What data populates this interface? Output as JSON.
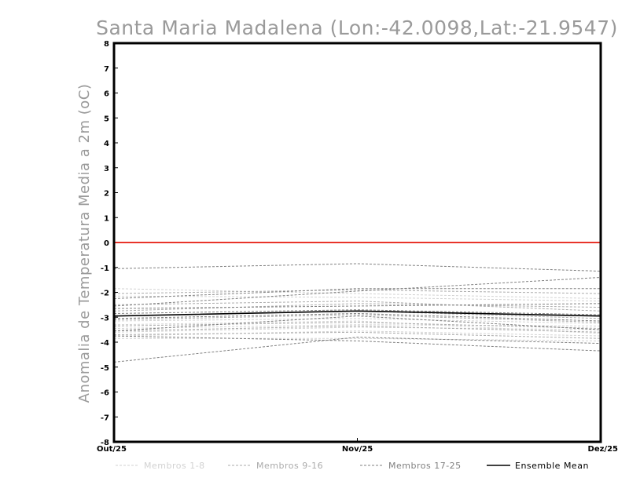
{
  "chart_data": {
    "type": "line",
    "title": "Santa Maria Madalena (Lon:-42.0098,Lat:-21.9547)",
    "xlabel": "",
    "ylabel": "Anomalia de Temperatura Media a 2m (oC)",
    "categories": [
      "Out/25",
      "Nov/25",
      "Dez/25"
    ],
    "ylim": [
      -8,
      8
    ],
    "yticks": [
      "8",
      "7",
      "6",
      "5",
      "4",
      "3",
      "2",
      "1",
      "0",
      "-1",
      "-2",
      "-3",
      "-4",
      "-5",
      "-6",
      "-7",
      "-8"
    ],
    "reference_line": {
      "value": 0,
      "color": "#e8342a"
    },
    "series": [
      {
        "name": "Membros 1-8",
        "group": "m1",
        "values": [
          -1.85,
          -2.05,
          -2.25
        ]
      },
      {
        "name": "Membros 1-8",
        "group": "m1",
        "values": [
          -3.15,
          -3.05,
          -3.25
        ]
      },
      {
        "name": "Membros 1-8",
        "group": "m1",
        "values": [
          -3.3,
          -3.15,
          -3.65
        ]
      },
      {
        "name": "Membros 1-8",
        "group": "m1",
        "values": [
          -3.45,
          -3.3,
          -3.35
        ]
      },
      {
        "name": "Membros 1-8",
        "group": "m1",
        "values": [
          -3.6,
          -3.4,
          -3.5
        ]
      },
      {
        "name": "Membros 1-8",
        "group": "m1",
        "values": [
          -3.75,
          -3.55,
          -3.75
        ]
      },
      {
        "name": "Membros 1-8",
        "group": "m1",
        "values": [
          -3.85,
          -3.85,
          -3.95
        ]
      },
      {
        "name": "Membros 1-8",
        "group": "m1",
        "values": [
          -2.15,
          -2.2,
          -2.35
        ]
      },
      {
        "name": "Membros 9-16",
        "group": "m2",
        "values": [
          -2.05,
          -1.9,
          -2.05
        ]
      },
      {
        "name": "Membros 9-16",
        "group": "m2",
        "values": [
          -2.5,
          -2.35,
          -2.75
        ]
      },
      {
        "name": "Membros 9-16",
        "group": "m2",
        "values": [
          -2.75,
          -2.45,
          -2.6
        ]
      },
      {
        "name": "Membros 9-16",
        "group": "m2",
        "values": [
          -2.95,
          -2.75,
          -3.05
        ]
      },
      {
        "name": "Membros 9-16",
        "group": "m2",
        "values": [
          -3.1,
          -2.9,
          -3.2
        ]
      },
      {
        "name": "Membros 9-16",
        "group": "m2",
        "values": [
          -3.35,
          -3.2,
          -3.45
        ]
      },
      {
        "name": "Membros 9-16",
        "group": "m2",
        "values": [
          -3.55,
          -3.35,
          -3.6
        ]
      },
      {
        "name": "Membros 9-16",
        "group": "m2",
        "values": [
          -3.7,
          -3.6,
          -3.85
        ]
      },
      {
        "name": "Membros 17-25",
        "group": "m3",
        "values": [
          -1.05,
          -0.85,
          -1.15
        ]
      },
      {
        "name": "Membros 17-25",
        "group": "m3",
        "values": [
          -2.25,
          -1.85,
          -1.85
        ]
      },
      {
        "name": "Membros 17-25",
        "group": "m3",
        "values": [
          -2.55,
          -1.95,
          -1.4
        ]
      },
      {
        "name": "Membros 17-25",
        "group": "m3",
        "values": [
          -2.65,
          -2.55,
          -2.45
        ]
      },
      {
        "name": "Membros 17-25",
        "group": "m3",
        "values": [
          -2.85,
          -2.7,
          -2.9
        ]
      },
      {
        "name": "Membros 17-25",
        "group": "m3",
        "values": [
          -3.05,
          -2.85,
          -3.15
        ]
      },
      {
        "name": "Membros 17-25",
        "group": "m3",
        "values": [
          -3.55,
          -2.95,
          -3.5
        ]
      },
      {
        "name": "Membros 17-25",
        "group": "m3",
        "values": [
          -3.75,
          -3.95,
          -4.35
        ]
      },
      {
        "name": "Membros 17-25",
        "group": "m3",
        "values": [
          -4.8,
          -3.8,
          -4.05
        ]
      },
      {
        "name": "Ensemble Mean",
        "group": "mean",
        "values": [
          -2.95,
          -2.75,
          -2.95
        ]
      }
    ],
    "legend": [
      {
        "label": "Membros 1-8",
        "group": "m1",
        "color": "#d2d2d2"
      },
      {
        "label": "Membros 9-16",
        "group": "m2",
        "color": "#ababab"
      },
      {
        "label": "Membros 17-25",
        "group": "m3",
        "color": "#808080"
      },
      {
        "label": "Ensemble Mean",
        "group": "mean",
        "color": "#000000"
      }
    ],
    "colors": {
      "m1": "#d2d2d2",
      "m2": "#ababab",
      "m3": "#808080",
      "mean": "#000000",
      "title": "#9a9a9a"
    },
    "grid": false,
    "legend_position": "bottom"
  }
}
